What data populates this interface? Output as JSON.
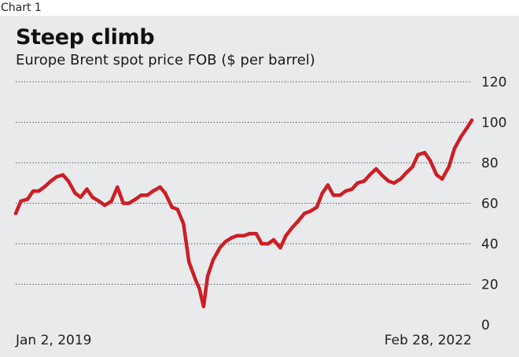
{
  "label": "Chart 1",
  "colors": {
    "line": "#cc1f25",
    "background": "#e9eaec",
    "grid": "#3c3c3c",
    "text": "#222222"
  },
  "chart_data": {
    "type": "line",
    "title": "Steep climb",
    "subtitle": "Europe Brent spot price FOB ($ per barrel)",
    "xlabel": "",
    "ylabel": "",
    "x_tick_labels": [
      "Jan 2, 2019",
      "Feb 28, 2022"
    ],
    "y_ticks": [
      0,
      20,
      40,
      60,
      80,
      100,
      120
    ],
    "ylim": [
      0,
      120
    ],
    "xlim": [
      "2019-01-02",
      "2022-02-28"
    ],
    "grid": "horizontal dotted",
    "y_axis_position": "right",
    "series": [
      {
        "x": [
          "2019-01-02",
          "2019-01-15",
          "2019-02-01",
          "2019-02-15",
          "2019-03-01",
          "2019-03-15",
          "2019-04-01",
          "2019-04-15",
          "2019-05-01",
          "2019-05-15",
          "2019-06-01",
          "2019-06-15",
          "2019-07-01",
          "2019-07-15",
          "2019-08-01",
          "2019-08-15",
          "2019-09-01",
          "2019-09-16",
          "2019-10-01",
          "2019-10-15",
          "2019-11-01",
          "2019-11-15",
          "2019-12-01",
          "2019-12-15",
          "2020-01-02",
          "2020-01-15",
          "2020-02-01",
          "2020-02-15",
          "2020-03-01",
          "2020-03-15",
          "2020-04-01",
          "2020-04-10",
          "2020-04-21",
          "2020-05-01",
          "2020-05-15",
          "2020-06-01",
          "2020-06-15",
          "2020-07-01",
          "2020-07-15",
          "2020-08-01",
          "2020-08-15",
          "2020-09-01",
          "2020-09-15",
          "2020-10-01",
          "2020-10-15",
          "2020-11-01",
          "2020-11-15",
          "2020-12-01",
          "2020-12-15",
          "2021-01-01",
          "2021-01-15",
          "2021-02-01",
          "2021-02-15",
          "2021-03-01",
          "2021-03-15",
          "2021-04-01",
          "2021-04-15",
          "2021-05-01",
          "2021-05-15",
          "2021-06-01",
          "2021-06-15",
          "2021-07-01",
          "2021-07-15",
          "2021-08-01",
          "2021-08-15",
          "2021-09-01",
          "2021-09-15",
          "2021-10-01",
          "2021-10-15",
          "2021-11-01",
          "2021-11-15",
          "2021-12-01",
          "2021-12-15",
          "2022-01-01",
          "2022-01-15",
          "2022-02-01",
          "2022-02-15",
          "2022-02-28"
        ],
        "values": [
          55,
          61,
          62,
          66,
          66,
          68,
          71,
          73,
          74,
          71,
          65,
          63,
          67,
          63,
          61,
          59,
          61,
          68,
          60,
          60,
          62,
          64,
          64,
          66,
          68,
          65,
          58,
          57,
          50,
          31,
          22,
          18,
          9,
          24,
          32,
          38,
          41,
          43,
          44,
          44,
          45,
          45,
          40,
          40,
          42,
          38,
          44,
          48,
          51,
          55,
          56,
          58,
          65,
          69,
          64,
          64,
          66,
          67,
          70,
          71,
          74,
          77,
          74,
          71,
          70,
          72,
          75,
          78,
          84,
          85,
          81,
          74,
          72,
          78,
          87,
          93,
          97,
          101
        ]
      }
    ]
  }
}
